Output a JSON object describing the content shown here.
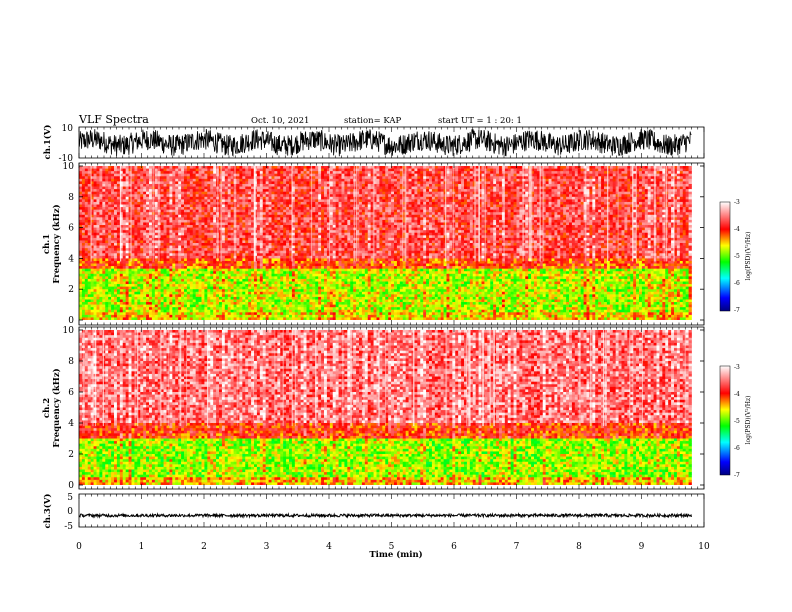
{
  "header": {
    "title": "VLF Spectra",
    "date": "Oct. 10, 2021",
    "station": "station= KAP",
    "start": "start  UT =   1 : 20: 1"
  },
  "chart_data": [
    {
      "type": "line",
      "panel": "ch1-waveform",
      "ylabel": "ch.1(V)",
      "ylim": [
        -10,
        10
      ],
      "yticks": [
        "10",
        "-10"
      ],
      "xlim": [
        0,
        10
      ],
      "x_end": 9.8,
      "signal": "dense noisy waveform, roughly -8 to 8 V"
    },
    {
      "type": "heatmap",
      "panel": "ch1-spectrogram",
      "ylabel_line1": "ch.1",
      "ylabel_line2": "Frequency (kHz)",
      "ylim": [
        0,
        10
      ],
      "yticks": [
        "0",
        "2",
        "4",
        "6",
        "8",
        "10"
      ],
      "xlim": [
        0,
        10
      ],
      "x_end": 9.8,
      "colorbar": {
        "label": "log(PSD)(V²/Hz)",
        "ticks": [
          "-3",
          "-4",
          "-5",
          "-6",
          "-7"
        ],
        "range": [
          -7,
          -3
        ],
        "colors": [
          "#000080",
          "#0000ff",
          "#00ffff",
          "#00ff00",
          "#ffff00",
          "#ff0000",
          "#ffffff"
        ]
      },
      "bands": [
        {
          "freq": [
            0,
            0.5
          ],
          "level": -4.6
        },
        {
          "freq": [
            0.5,
            3.4
          ],
          "level": -4.8
        },
        {
          "freq": [
            3.4,
            4.0
          ],
          "level": -4.2
        },
        {
          "freq": [
            4.0,
            10.0
          ],
          "level": -3.8
        }
      ]
    },
    {
      "type": "heatmap",
      "panel": "ch2-spectrogram",
      "ylabel_line1": "ch.2",
      "ylabel_line2": "Frequency (kHz)",
      "ylim": [
        0,
        10
      ],
      "yticks": [
        "0",
        "2",
        "4",
        "6",
        "8",
        "10"
      ],
      "xlim": [
        0,
        10
      ],
      "x_end": 9.8,
      "colorbar": {
        "label": "log(PSD)(V²/Hz)",
        "ticks": [
          "-3",
          "-4",
          "-5",
          "-6",
          "-7"
        ],
        "range": [
          -7,
          -3
        ],
        "colors": [
          "#000080",
          "#0000ff",
          "#00ffff",
          "#00ff00",
          "#ffff00",
          "#ff0000",
          "#ffffff"
        ]
      },
      "bands": [
        {
          "freq": [
            0,
            0.5
          ],
          "level": -4.5
        },
        {
          "freq": [
            0.5,
            3.0
          ],
          "level": -4.9
        },
        {
          "freq": [
            3.0,
            4.0
          ],
          "level": -4.1
        },
        {
          "freq": [
            4.0,
            10.0
          ],
          "level": -3.6
        }
      ]
    },
    {
      "type": "line",
      "panel": "ch3-waveform",
      "ylabel": "ch.3(V)",
      "ylim": [
        -5,
        5
      ],
      "yticks": [
        "5",
        "0",
        "-5"
      ],
      "xlim": [
        0,
        10
      ],
      "x_end": 9.8,
      "signal": "narrow band around -1 to -2 V",
      "xlabel": "Time  (min)",
      "xticks": [
        "0",
        "1",
        "2",
        "3",
        "4",
        "5",
        "6",
        "7",
        "8",
        "9",
        "10"
      ]
    }
  ]
}
